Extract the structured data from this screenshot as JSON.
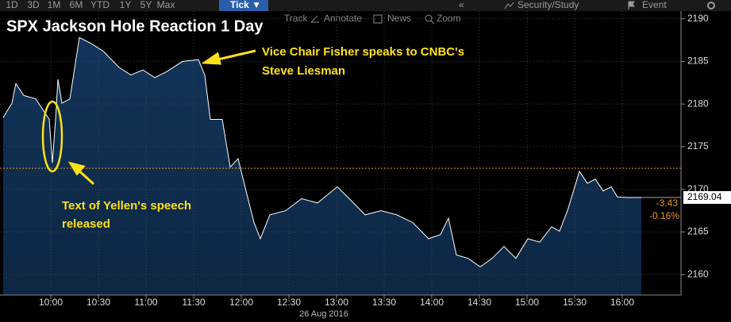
{
  "toolbar": {
    "ranges": [
      "1D",
      "3D",
      "1M",
      "6M",
      "YTD",
      "1Y",
      "5Y",
      "Max"
    ],
    "active": "Tick ▼",
    "collapse": "«",
    "security": "Security/Study",
    "event": "Event",
    "tools": [
      "Track",
      "Annotate",
      "News",
      "Zoom"
    ]
  },
  "chart_data": {
    "type": "line",
    "title": "SPX Jackson Hole Reaction 1 Day",
    "series": [
      {
        "name": "SPX",
        "color": "#ffffff",
        "x": [
          570,
          575.5,
          578,
          583,
          590.5,
          595.5,
          599,
          601,
          603,
          604.5,
          607,
          612,
          615.5,
          618,
          625.5,
          633,
          643,
          650.5,
          658,
          665.5,
          673,
          683,
          693,
          697,
          700.5,
          708,
          713,
          718,
          723,
          728,
          732,
          738,
          748,
          758,
          768,
          780.5,
          788,
          798,
          808,
          818,
          828,
          838,
          845.5,
          850.5,
          855.5,
          863,
          870.5,
          878,
          885.5,
          893,
          900.5,
          908,
          915.5,
          920.5,
          925.5,
          933,
          938,
          943,
          948,
          953,
          957,
          963,
          972
        ],
        "values": [
          2178.4,
          2180.1,
          2182.4,
          2181,
          2180.6,
          2179.2,
          2178.2,
          2173.1,
          2178.2,
          2182.9,
          2180.1,
          2180.6,
          2184.8,
          2187.8,
          2187.1,
          2186.2,
          2184.3,
          2183.4,
          2184,
          2183.1,
          2183.8,
          2185,
          2185.2,
          2183.4,
          2178.2,
          2178.2,
          2172.6,
          2173.6,
          2169.8,
          2166.1,
          2164.2,
          2167,
          2167.5,
          2168.9,
          2168.4,
          2170.3,
          2168.9,
          2167,
          2167.5,
          2167,
          2166.1,
          2164.2,
          2164.7,
          2166.6,
          2162.3,
          2161.9,
          2160.9,
          2161.9,
          2163.3,
          2161.9,
          2164.2,
          2163.8,
          2165.6,
          2165.1,
          2167.5,
          2172.1,
          2170.7,
          2171.2,
          2169.8,
          2170.3,
          2169.1,
          2169.04,
          2169.04
        ]
      }
    ],
    "fill_color": "#12345a",
    "reference_line": {
      "value": 2172.47,
      "color": "#e8961e"
    },
    "last": {
      "value": 2169.04,
      "change": -3.43,
      "change_label": "-0.16%"
    },
    "xlim": [
      568,
      997
    ],
    "xticks": [
      {
        "value": 600,
        "label": "10:00"
      },
      {
        "value": 630,
        "label": "10:30"
      },
      {
        "value": 660,
        "label": "11:00"
      },
      {
        "value": 690,
        "label": "11:30"
      },
      {
        "value": 720,
        "label": "12:00"
      },
      {
        "value": 750,
        "label": "12:30"
      },
      {
        "value": 780,
        "label": "13:00"
      },
      {
        "value": 810,
        "label": "13:30"
      },
      {
        "value": 840,
        "label": "14:00"
      },
      {
        "value": 870,
        "label": "14:30"
      },
      {
        "value": 900,
        "label": "15:00"
      },
      {
        "value": 930,
        "label": "15:30"
      },
      {
        "value": 960,
        "label": "16:00"
      }
    ],
    "x_label": "26 Aug 2016",
    "ylim": [
      2157.6,
      2190.9
    ],
    "yticks": [
      2160,
      2165,
      2170,
      2175,
      2180,
      2185,
      2190
    ],
    "grid": true,
    "annotations": [
      {
        "lines": [
          "Vice Chair Fisher speaks to CNBC's",
          "Steve Liesman"
        ]
      },
      {
        "lines": [
          "Text of Yellen's speech",
          "released"
        ]
      }
    ]
  }
}
